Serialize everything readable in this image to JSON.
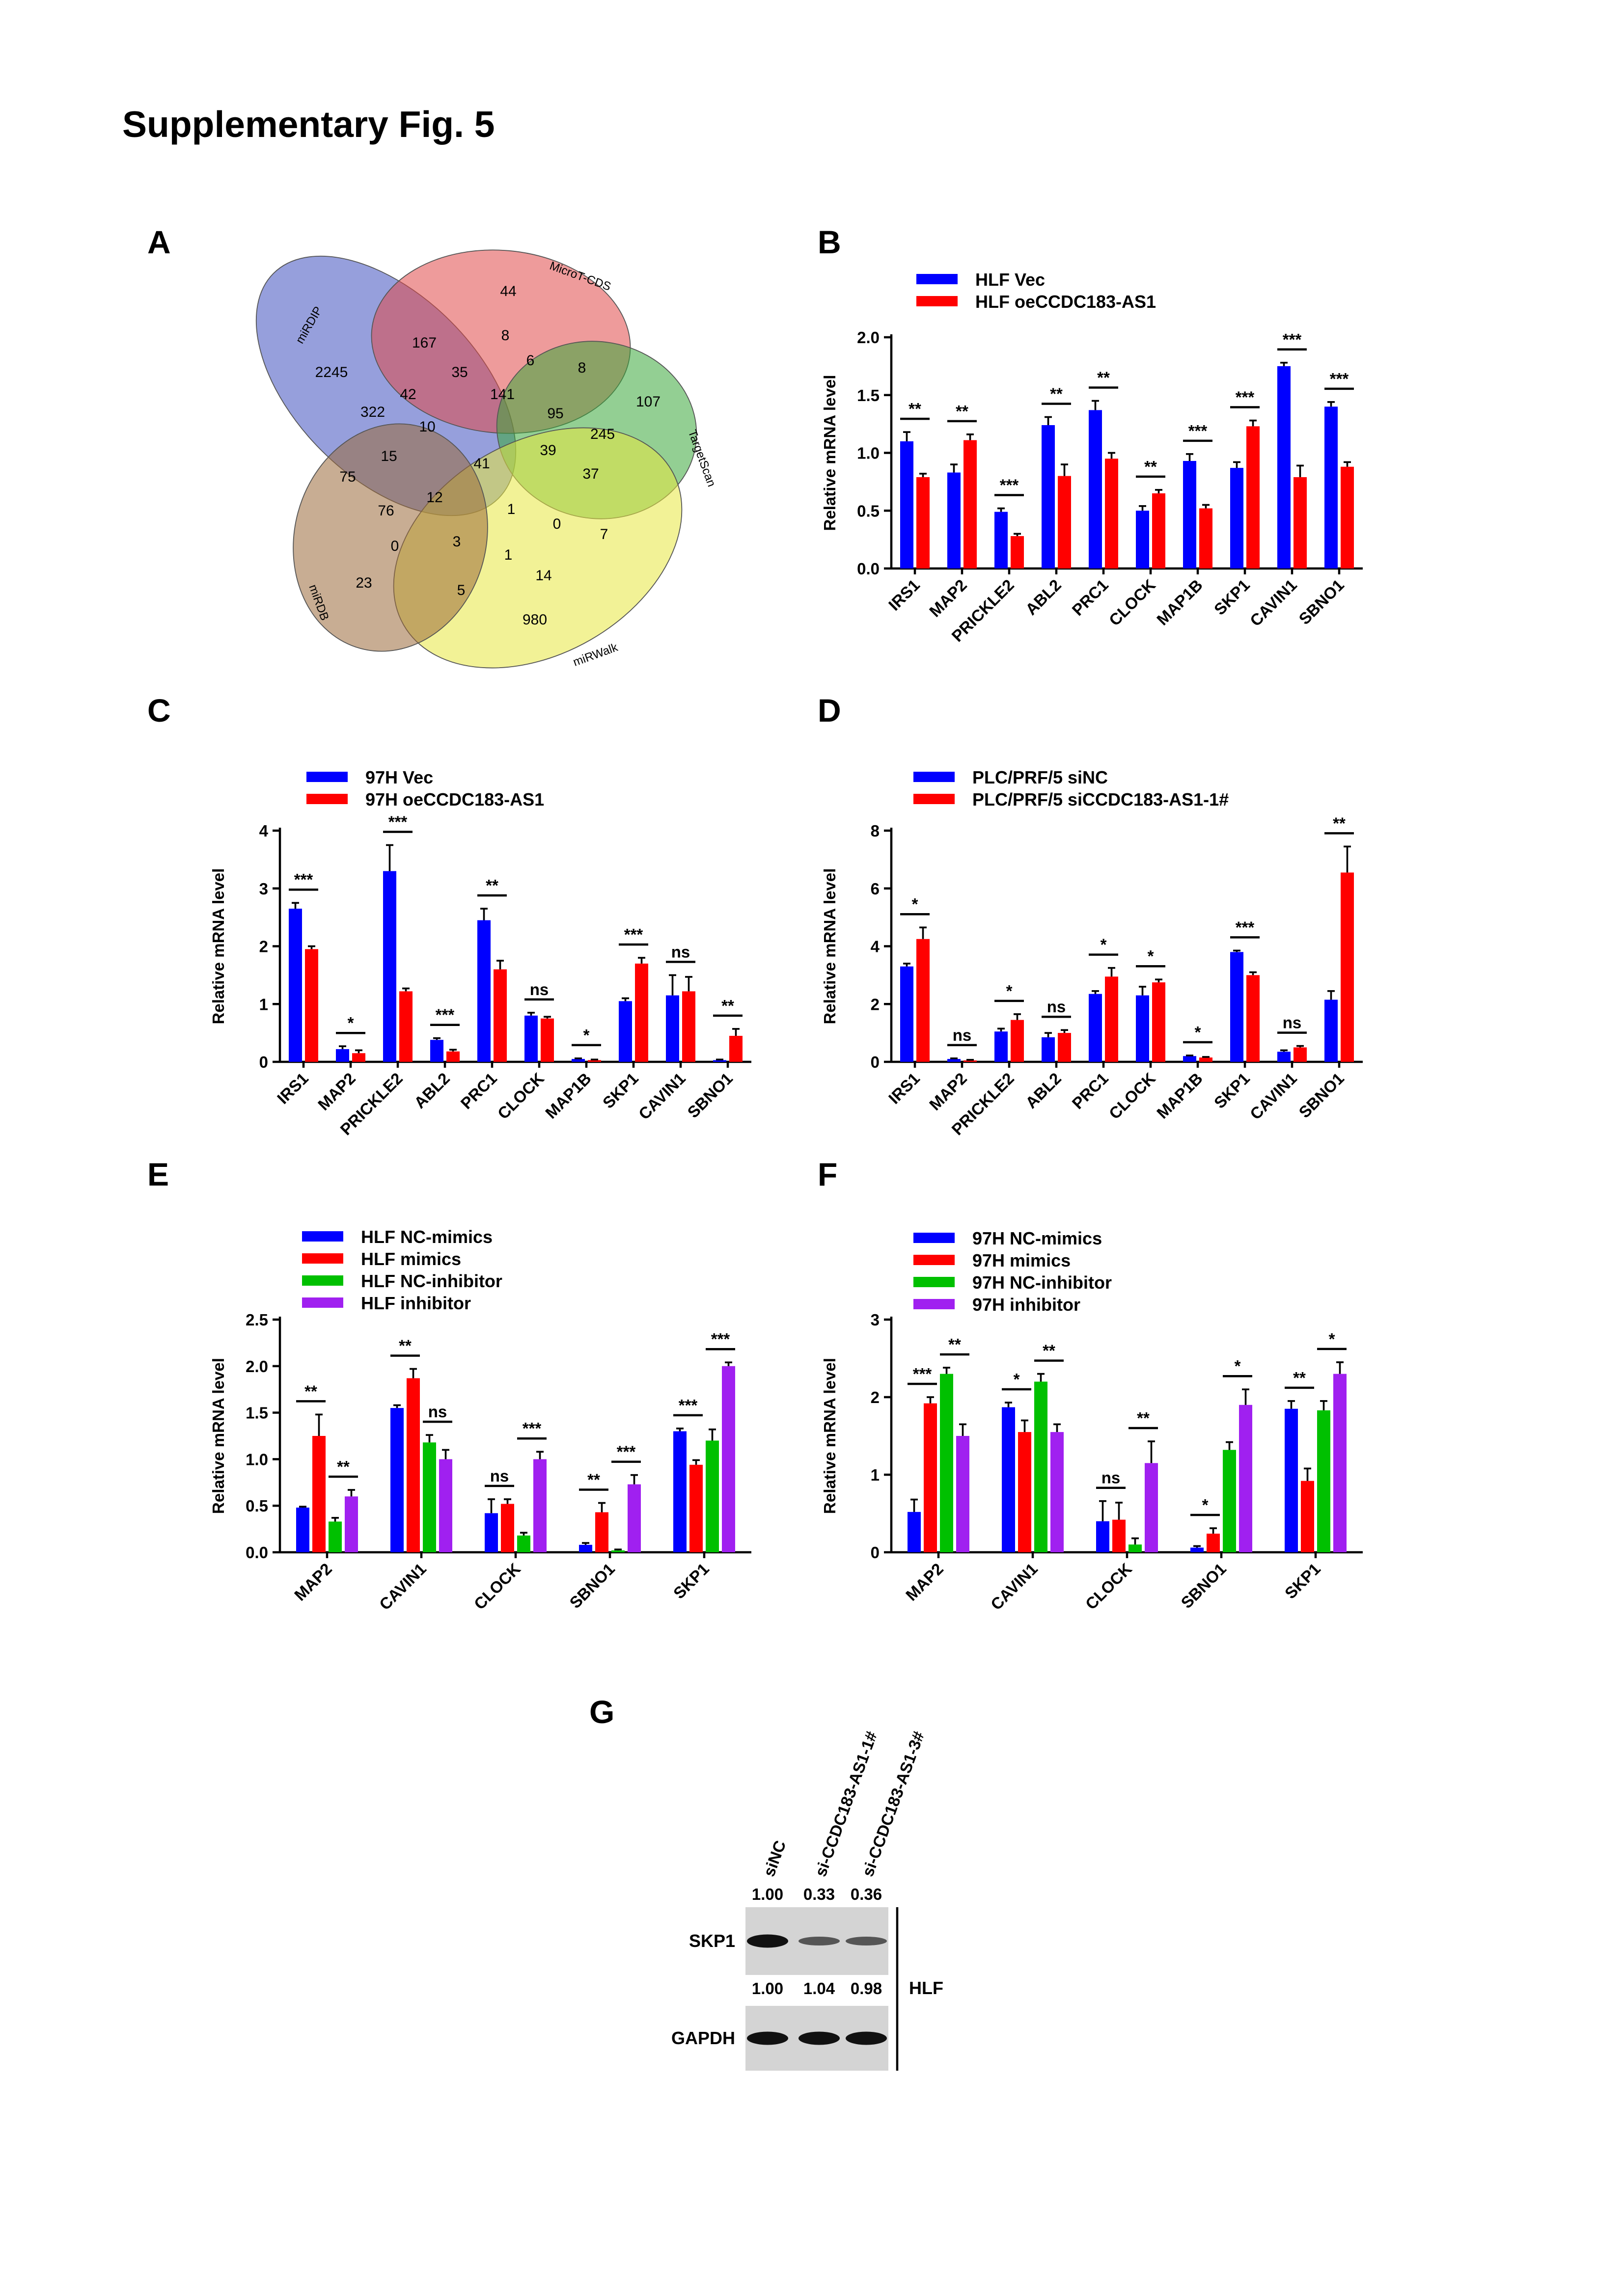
{
  "title": "Supplementary Fig. 5",
  "venn": {
    "panel": "A",
    "sets": [
      {
        "name": "miRDIP",
        "color": "#3f51c0"
      },
      {
        "name": "MicroT-CDS",
        "color": "#e04848"
      },
      {
        "name": "TargetScan",
        "color": "#3aa83a"
      },
      {
        "name": "miRWalk",
        "color": "#e8e840"
      },
      {
        "name": "miRDB",
        "color": "#9a6a3a"
      }
    ],
    "regions": [
      44,
      167,
      8,
      35,
      6,
      8,
      2245,
      42,
      141,
      95,
      107,
      322,
      10,
      245,
      39,
      15,
      41,
      37,
      75,
      12,
      1,
      0,
      7,
      76,
      0,
      3,
      1,
      14,
      23,
      5,
      980
    ]
  },
  "chart_data": [
    {
      "type": "bar",
      "panel": "B",
      "ylabel": "Relative mRNA level",
      "categories": [
        "IRS1",
        "MAP2",
        "PRICKLE2",
        "ABL2",
        "PRC1",
        "CLOCK",
        "MAP1B",
        "SKP1",
        "CAVIN1",
        "SBNO1"
      ],
      "series": [
        {
          "name": "HLF Vec",
          "color": "#0000ff",
          "values": [
            1.1,
            0.83,
            0.49,
            1.24,
            1.37,
            0.5,
            0.93,
            0.87,
            1.75,
            1.4
          ],
          "errors": [
            0.08,
            0.07,
            0.03,
            0.07,
            0.08,
            0.04,
            0.06,
            0.05,
            0.03,
            0.04
          ]
        },
        {
          "name": "HLF oeCCDC183-AS1",
          "color": "#ff0000",
          "values": [
            0.79,
            1.11,
            0.28,
            0.8,
            0.95,
            0.65,
            0.52,
            1.23,
            0.79,
            0.88
          ],
          "errors": [
            0.03,
            0.05,
            0.02,
            0.1,
            0.05,
            0.03,
            0.03,
            0.05,
            0.1,
            0.04
          ]
        }
      ],
      "significance": [
        "**",
        "**",
        "***",
        "**",
        "**",
        "**",
        "***",
        "***",
        "***",
        "***"
      ],
      "ylim": [
        0,
        2
      ],
      "yticks": [
        {
          "value": 0,
          "label": "0.0"
        },
        0.5,
        {
          "value": 1,
          "label": "1.0"
        },
        1.5,
        {
          "value": 2,
          "label": "2.0"
        }
      ]
    },
    {
      "type": "bar",
      "panel": "C",
      "ylabel": "Relative mRNA level",
      "categories": [
        "IRS1",
        "MAP2",
        "PRICKLE2",
        "ABL2",
        "PRC1",
        "CLOCK",
        "MAP1B",
        "SKP1",
        "CAVIN1",
        "SBNO1"
      ],
      "series": [
        {
          "name": "97H Vec",
          "color": "#0000ff",
          "values": [
            2.65,
            0.22,
            3.3,
            0.38,
            2.45,
            0.8,
            0.05,
            1.05,
            1.15,
            0.03
          ],
          "errors": [
            0.1,
            0.05,
            0.45,
            0.03,
            0.2,
            0.05,
            0.01,
            0.05,
            0.35,
            0.01
          ]
        },
        {
          "name": "97H oeCCDC183-AS1",
          "color": "#ff0000",
          "values": [
            1.95,
            0.15,
            1.22,
            0.18,
            1.6,
            0.75,
            0.03,
            1.7,
            1.22,
            0.45
          ],
          "errors": [
            0.05,
            0.05,
            0.05,
            0.03,
            0.15,
            0.03,
            0.01,
            0.1,
            0.25,
            0.12
          ]
        }
      ],
      "significance": [
        "***",
        "*",
        "***",
        "***",
        "**",
        "ns",
        "*",
        "***",
        "ns",
        "**"
      ],
      "ylim": [
        0,
        4
      ],
      "yticks": [
        0,
        1,
        2,
        3,
        4
      ]
    },
    {
      "type": "bar",
      "panel": "D",
      "ylabel": "Relative mRNA level",
      "categories": [
        "IRS1",
        "MAP2",
        "PRICKLE2",
        "ABL2",
        "PRC1",
        "CLOCK",
        "MAP1B",
        "SKP1",
        "CAVIN1",
        "SBNO1"
      ],
      "series": [
        {
          "name": "PLC/PRF/5 siNC",
          "color": "#0000ff",
          "values": [
            3.3,
            0.1,
            1.05,
            0.85,
            2.35,
            2.3,
            0.2,
            3.8,
            0.35,
            2.15
          ],
          "errors": [
            0.1,
            0.02,
            0.1,
            0.15,
            0.1,
            0.3,
            0.02,
            0.05,
            0.05,
            0.3
          ]
        },
        {
          "name": "PLC/PRF/5 siCCDC183-AS1-1#",
          "color": "#ff0000",
          "values": [
            4.25,
            0.05,
            1.45,
            1.0,
            2.95,
            2.75,
            0.15,
            3.0,
            0.5,
            6.55
          ],
          "errors": [
            0.4,
            0.02,
            0.2,
            0.1,
            0.3,
            0.1,
            0.02,
            0.1,
            0.05,
            0.9
          ]
        }
      ],
      "significance": [
        "*",
        "ns",
        "*",
        "ns",
        "*",
        "*",
        "*",
        "***",
        "ns",
        "**"
      ],
      "ylim": [
        0,
        8
      ],
      "yticks": [
        0,
        2,
        4,
        6,
        8
      ]
    },
    {
      "type": "bar",
      "panel": "E",
      "ylabel": "Relative mRNA level",
      "categories": [
        "MAP2",
        "CAVIN1",
        "CLOCK",
        "SBNO1",
        "SKP1"
      ],
      "series": [
        {
          "name": "HLF NC-mimics",
          "color": "#0000ff",
          "values": [
            0.48,
            1.55,
            0.42,
            0.08,
            1.3
          ],
          "errors": [
            0.01,
            0.03,
            0.15,
            0.02,
            0.03
          ]
        },
        {
          "name": "HLF mimics",
          "color": "#ff0000",
          "values": [
            1.25,
            1.87,
            0.52,
            0.43,
            0.94
          ],
          "errors": [
            0.23,
            0.1,
            0.05,
            0.1,
            0.05
          ]
        },
        {
          "name": "HLF NC-inhibitor",
          "color": "#00c000",
          "values": [
            0.33,
            1.18,
            0.18,
            0.02,
            1.2
          ],
          "errors": [
            0.04,
            0.08,
            0.03,
            0.01,
            0.12
          ]
        },
        {
          "name": "HLF inhibitor",
          "color": "#a020f0",
          "values": [
            0.6,
            1.0,
            1.0,
            0.73,
            2.0
          ],
          "errors": [
            0.07,
            0.1,
            0.08,
            0.1,
            0.04
          ]
        }
      ],
      "significance": [
        [
          "**",
          "**"
        ],
        [
          "**",
          "ns"
        ],
        [
          "ns",
          "***"
        ],
        [
          "**",
          "***"
        ],
        [
          "***",
          "***"
        ]
      ],
      "ylim": [
        0,
        2.5
      ],
      "yticks": [
        {
          "value": 0,
          "label": "0.0"
        },
        0.5,
        {
          "value": 1,
          "label": "1.0"
        },
        1.5,
        {
          "value": 2,
          "label": "2.0"
        },
        2.5
      ]
    },
    {
      "type": "bar",
      "panel": "F",
      "ylabel": "Relative mRNA level",
      "categories": [
        "MAP2",
        "CAVIN1",
        "CLOCK",
        "SBNO1",
        "SKP1"
      ],
      "series": [
        {
          "name": "97H NC-mimics",
          "color": "#0000ff",
          "values": [
            0.52,
            1.87,
            0.4,
            0.06,
            1.85
          ],
          "errors": [
            0.16,
            0.06,
            0.26,
            0.02,
            0.1
          ]
        },
        {
          "name": "97H mimics",
          "color": "#ff0000",
          "values": [
            1.92,
            1.55,
            0.42,
            0.24,
            0.92
          ],
          "errors": [
            0.08,
            0.15,
            0.22,
            0.07,
            0.16
          ]
        },
        {
          "name": "97H NC-inhibitor",
          "color": "#00c000",
          "values": [
            2.3,
            2.2,
            0.1,
            1.32,
            1.83
          ],
          "errors": [
            0.08,
            0.1,
            0.08,
            0.1,
            0.12
          ]
        },
        {
          "name": "97H inhibitor",
          "color": "#a020f0",
          "values": [
            1.5,
            1.55,
            1.15,
            1.9,
            2.3
          ],
          "errors": [
            0.15,
            0.1,
            0.28,
            0.2,
            0.15
          ]
        }
      ],
      "significance": [
        [
          "***",
          "**"
        ],
        [
          "*",
          "**"
        ],
        [
          "ns",
          "**"
        ],
        [
          "*",
          "*"
        ],
        [
          "**",
          "*"
        ]
      ],
      "ylim": [
        0,
        3
      ],
      "yticks": [
        0,
        1,
        2,
        3
      ]
    }
  ],
  "blot": {
    "panel": "G",
    "lanes": [
      "siNC",
      "si-CCDC183-AS1-1#",
      "si-CCDC183-AS1-3#"
    ],
    "rows": [
      {
        "name": "SKP1",
        "quant": [
          "1.00",
          "0.33",
          "0.36"
        ]
      },
      {
        "name": "GAPDH",
        "quant": [
          "1.00",
          "1.04",
          "0.98"
        ]
      }
    ],
    "cell": "HLF"
  }
}
